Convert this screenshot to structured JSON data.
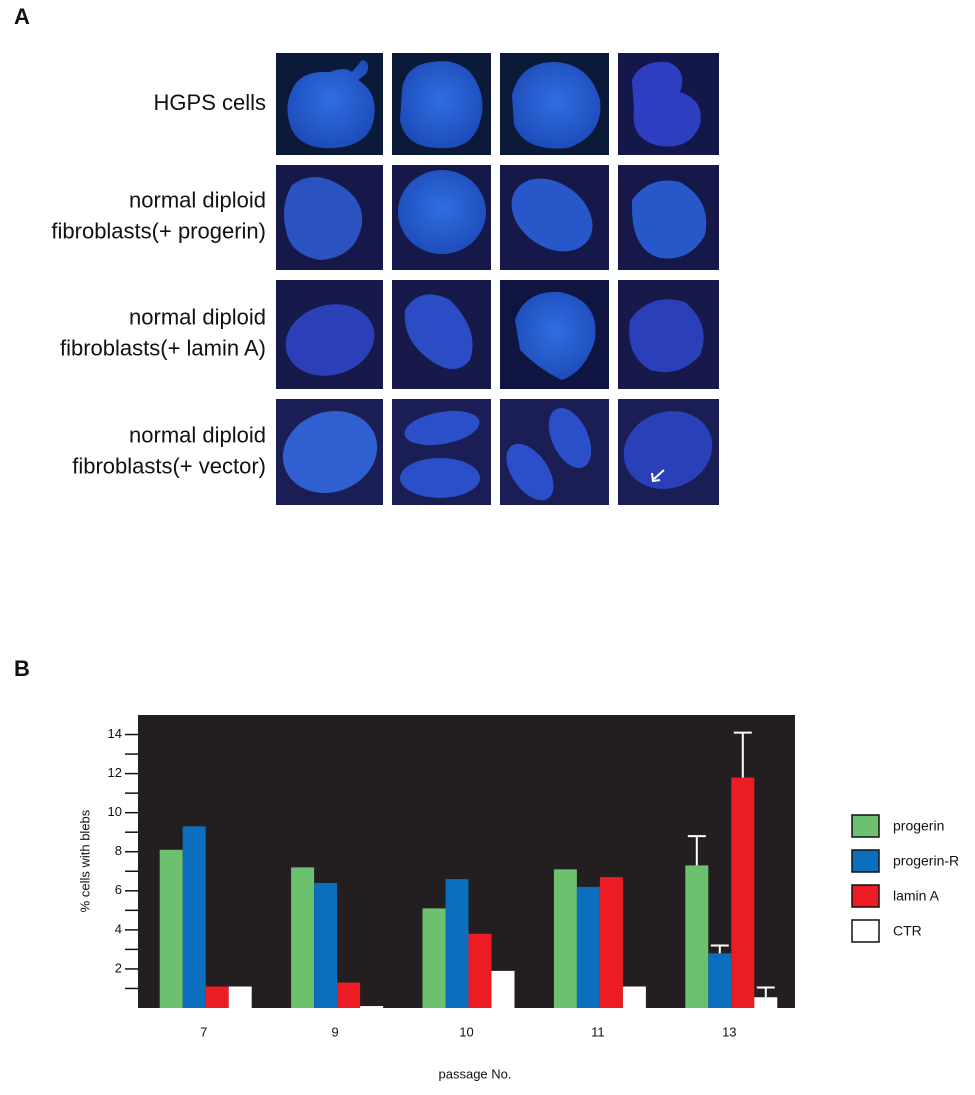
{
  "panel_a": {
    "label": "A",
    "rows": [
      [
        "HGPS cells"
      ],
      [
        "normal diploid",
        "fibroblasts(+ progerin)"
      ],
      [
        "normal diploid",
        "fibroblasts(+ lamin A)"
      ],
      [
        "normal diploid",
        "fibroblasts(+ vector)"
      ]
    ]
  },
  "chart_data": {
    "type": "bar",
    "panel_label": "B",
    "x_label": "passage No.",
    "y_label": "% cells with blebs",
    "categories": [
      "7",
      "9",
      "10",
      "11",
      "13"
    ],
    "series": [
      {
        "name": "progerin",
        "color": "#6cc06e",
        "values": [
          8.1,
          7.2,
          5.1,
          7.1,
          7.3
        ],
        "errors": [
          null,
          null,
          null,
          null,
          1.5
        ]
      },
      {
        "name": "progerin-R",
        "color": "#0c6fbd",
        "values": [
          9.3,
          6.4,
          6.6,
          6.2,
          2.8
        ],
        "errors": [
          null,
          null,
          null,
          null,
          0.4
        ]
      },
      {
        "name": "lamin A",
        "color": "#ec1c24",
        "values": [
          1.1,
          1.3,
          3.8,
          6.7,
          11.8
        ],
        "errors": [
          null,
          null,
          null,
          null,
          2.3
        ]
      },
      {
        "name": "CTR",
        "color": "#ffffff",
        "values": [
          1.1,
          0.1,
          1.9,
          1.1,
          0.55
        ],
        "errors": [
          null,
          null,
          null,
          null,
          0.5
        ]
      }
    ],
    "ylim": [
      0,
      15
    ],
    "yticks": [
      2,
      4,
      6,
      8,
      10,
      12,
      14
    ],
    "yminorticks": [
      1,
      3,
      5,
      7,
      9,
      11,
      13
    ],
    "plot_background": "#231f20",
    "legend": "right"
  }
}
